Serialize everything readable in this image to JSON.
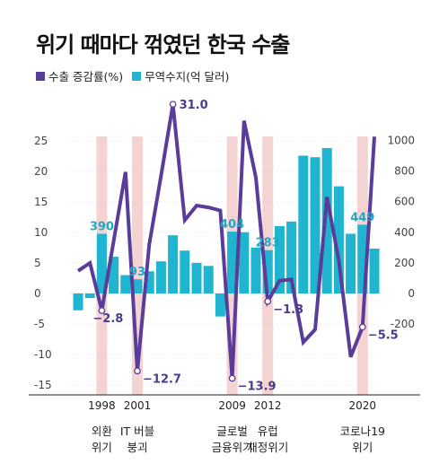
{
  "title": "위기 때마다 꺾였던 한국 수출",
  "legend": {
    "line_label": "수출 증감률(%)",
    "bar_label": "무역수지(억 달러)"
  },
  "colors": {
    "line": "#5a3d9a",
    "bar": "#1fb4cf",
    "band": "#f6d3d3",
    "grid": "#cccccc"
  },
  "chart_data": {
    "type": "bar+line",
    "years": [
      1996,
      1997,
      1998,
      1999,
      2000,
      2001,
      2002,
      2003,
      2004,
      2005,
      2006,
      2007,
      2008,
      2009,
      2010,
      2011,
      2012,
      2013,
      2014,
      2015,
      2016,
      2017,
      2018,
      2019,
      2020,
      2021
    ],
    "series": [
      {
        "name": "수출 증감률(%)",
        "axis": "left",
        "values": [
          3.7,
          5.0,
          -2.8,
          8.6,
          19.9,
          -12.7,
          8.0,
          19.3,
          31.0,
          12.0,
          14.4,
          14.1,
          13.6,
          -13.9,
          28.3,
          19.0,
          -1.3,
          2.1,
          2.3,
          -8.0,
          -5.9,
          15.8,
          5.4,
          -10.4,
          -5.5,
          25.7
        ]
      },
      {
        "name": "무역수지(억 달러)",
        "axis": "right",
        "values": [
          -110,
          -30,
          390,
          240,
          120,
          93,
          145,
          210,
          380,
          280,
          200,
          180,
          -150,
          404,
          400,
          300,
          283,
          440,
          470,
          900,
          890,
          950,
          700,
          390,
          449,
          293
        ]
      }
    ],
    "left_axis": {
      "ticks": [
        25,
        20,
        15,
        10,
        5,
        0,
        -5,
        -10,
        -15
      ],
      "ylim": [
        -15,
        31
      ]
    },
    "right_axis": {
      "ticks": [
        1000,
        800,
        600,
        400,
        200,
        0,
        -200
      ],
      "ylim": [
        -600,
        1080
      ]
    },
    "annotations": [
      {
        "year": 1998,
        "series": "line",
        "text": "-2.8"
      },
      {
        "year": 2001,
        "series": "bar",
        "text": "93"
      },
      {
        "year": 2001,
        "series": "line",
        "text": "-12.7"
      },
      {
        "year": 2004,
        "series": "line",
        "text": "31.0"
      },
      {
        "year": 2009,
        "series": "line",
        "text": "-13.9"
      },
      {
        "year": 2009,
        "series": "bar",
        "text": "404"
      },
      {
        "year": 2012,
        "series": "line",
        "text": "-1.3"
      },
      {
        "year": 2012,
        "series": "bar",
        "text": "283"
      },
      {
        "year": 2020,
        "series": "line",
        "text": "-5.5"
      },
      {
        "year": 2020,
        "series": "bar",
        "text": "449"
      },
      {
        "year": 1998,
        "series": "bar",
        "text": "390"
      }
    ],
    "highlight_years": [
      1998,
      2001,
      2009,
      2012,
      2020
    ],
    "x_tick_labels": [
      {
        "year": 1998,
        "label": "1998"
      },
      {
        "year": 2001,
        "label": "2001"
      },
      {
        "year": 2009,
        "label": "2009"
      },
      {
        "year": 2012,
        "label": "2012"
      },
      {
        "year": 2020,
        "label": "2020"
      }
    ],
    "events": [
      {
        "year": 1998,
        "lines": [
          "외환",
          "위기"
        ]
      },
      {
        "year": 2001,
        "lines": [
          "IT 버블",
          "붕괴"
        ]
      },
      {
        "year": 2009,
        "lines": [
          "글로벌",
          "금융위기"
        ]
      },
      {
        "year": 2012,
        "lines": [
          "유럽",
          "재정위기"
        ]
      },
      {
        "year": 2020,
        "lines": [
          "코로나19",
          "위기"
        ]
      }
    ]
  }
}
